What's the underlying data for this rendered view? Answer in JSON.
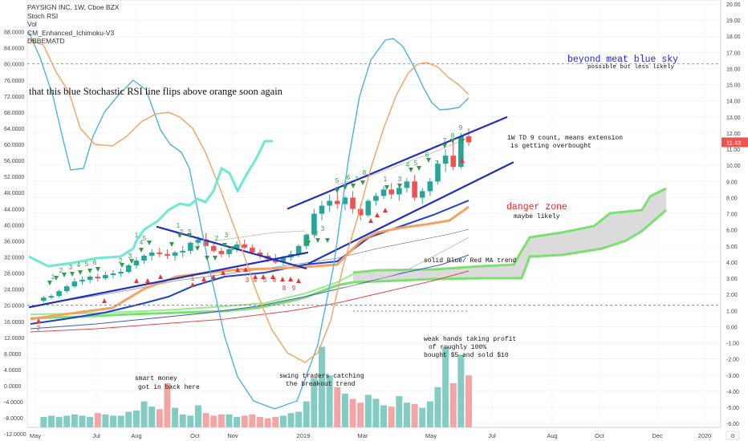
{
  "header": {
    "symbol_line": "PAYSIGN INC, 1W, Cboe BZX",
    "indicators": [
      "Stoch RSI",
      "Vol",
      "CM_Enhanced_Ichimoku-V3",
      "DBBEMATD"
    ]
  },
  "price_badge": {
    "value": "11.43",
    "color": "#ef5350"
  },
  "colors": {
    "stoch_k": "#4fb3d9",
    "stoch_d": "#f4a261",
    "trend": "#1f2fc0",
    "up": "#26a69a",
    "down": "#ef5350",
    "cloud_line": "#7be06f",
    "annotation_blue": "#1a1aff",
    "annotation_red": "#ff1a1a"
  },
  "annotations": {
    "stoch_note": "that this blue Stochastic RSI line flips above orange soon again",
    "beyond_title": "beyond meat blue sky",
    "beyond_sub": "possible but less likely",
    "td_line1": "1W  TD 9 count, means extension",
    "td_line2": "is getting overbought",
    "danger_title": "danger zone",
    "danger_sub": "maybe likely",
    "ma_trend": "solid Blue/ Red MA trend",
    "smart_1": "smart money",
    "smart_2": "got in back here",
    "swing_1": "swing traders catching",
    "swing_2": "the breakout trend",
    "weak_1": "weak hands taking profit",
    "weak_2": "of roughly  100%",
    "weak_3": "bought  $5  and sold  $10"
  },
  "chart_data": [
    {
      "type": "line",
      "title": "Stoch RSI",
      "ylim": [
        -12,
        92
      ],
      "y_ticks": [
        "88.0000",
        "84.0000",
        "80.0000",
        "76.0000",
        "72.0000",
        "68.0000",
        "64.0000",
        "60.0000",
        "56.0000",
        "52.0000",
        "48.0000",
        "44.0000",
        "40.0000",
        "36.0000",
        "32.0000",
        "28.0000",
        "24.0000",
        "20.0000",
        "16.0000",
        "12.0000",
        "8.0000",
        "4.0000",
        "0.0000",
        "-4.0000",
        "-8.0000",
        "-12.0000"
      ],
      "reference_levels": [
        80,
        20
      ],
      "series": [
        {
          "name": "K",
          "values": [
            85,
            77,
            62,
            48,
            47,
            59,
            66,
            71,
            68,
            56,
            52,
            34,
            18,
            -2,
            -3,
            -3,
            8,
            22,
            48,
            72,
            83,
            80,
            71,
            64,
            66
          ]
        },
        {
          "name": "D",
          "values": [
            79,
            66,
            55,
            55,
            60,
            63,
            63,
            58,
            52,
            44,
            36,
            24,
            12,
            4,
            2,
            6,
            22,
            38,
            55,
            67,
            75,
            75,
            71,
            68,
            67
          ]
        }
      ]
    },
    {
      "type": "bar",
      "title": "PAYSIGN INC, 1W, Cboe BZX",
      "ylim": [
        -6,
        20
      ],
      "y_ticks": [
        "20.00",
        "19.00",
        "18.00",
        "17.00",
        "16.00",
        "15.00",
        "14.00",
        "13.00",
        "12.00",
        "11.00",
        "10.00",
        "9.00",
        "8.00",
        "7.00",
        "6.00",
        "5.00",
        "4.00",
        "3.00",
        "2.00",
        "1.00",
        "0.00",
        "-1.00",
        "-2.00",
        "-3.00",
        "-4.00",
        "-5.00",
        "-6.00"
      ],
      "x_ticks": [
        "May",
        "Jul",
        "Aug",
        "Oct",
        "Nov",
        "2019",
        "Mar",
        "May",
        "Jul",
        "Aug",
        "Oct",
        "Dec",
        "2020"
      ],
      "last_close": 11.43,
      "candles": [
        [
          1.6,
          1.9,
          1.5,
          1.8
        ],
        [
          1.8,
          2.0,
          1.7,
          1.9
        ],
        [
          1.9,
          2.3,
          1.8,
          2.2
        ],
        [
          2.2,
          2.6,
          2.1,
          2.5
        ],
        [
          2.5,
          3.0,
          2.4,
          2.8
        ],
        [
          2.8,
          3.1,
          2.6,
          2.9
        ],
        [
          2.9,
          3.2,
          2.7,
          3.1
        ],
        [
          3.1,
          3.3,
          2.8,
          3.0
        ],
        [
          3.0,
          3.4,
          2.9,
          3.2
        ],
        [
          3.2,
          3.5,
          3.0,
          3.3
        ],
        [
          3.3,
          3.6,
          3.1,
          3.4
        ],
        [
          3.4,
          3.9,
          3.3,
          3.8
        ],
        [
          3.8,
          4.3,
          3.6,
          4.1
        ],
        [
          4.1,
          4.5,
          3.9,
          4.4
        ],
        [
          4.4,
          4.8,
          4.1,
          4.6
        ],
        [
          4.6,
          4.9,
          4.3,
          4.5
        ],
        [
          4.5,
          4.8,
          4.2,
          4.4
        ],
        [
          4.4,
          4.7,
          4.1,
          4.6
        ],
        [
          4.6,
          5.0,
          4.3,
          4.7
        ],
        [
          4.7,
          5.3,
          4.5,
          5.2
        ],
        [
          5.2,
          5.6,
          5.0,
          5.4
        ],
        [
          5.4,
          5.8,
          5.1,
          5.0
        ],
        [
          5.0,
          5.2,
          4.6,
          4.7
        ],
        [
          4.7,
          4.9,
          4.3,
          4.5
        ],
        [
          4.5,
          4.9,
          4.3,
          4.8
        ],
        [
          4.8,
          5.3,
          4.6,
          5.1
        ],
        [
          5.1,
          5.4,
          4.8,
          4.9
        ],
        [
          4.9,
          5.1,
          4.5,
          4.6
        ],
        [
          4.6,
          4.8,
          4.2,
          4.4
        ],
        [
          4.4,
          4.6,
          4.0,
          4.2
        ],
        [
          4.2,
          4.5,
          3.9,
          4.0
        ],
        [
          4.0,
          4.4,
          3.8,
          4.3
        ],
        [
          4.3,
          4.7,
          4.1,
          4.5
        ],
        [
          4.5,
          5.1,
          4.3,
          5.0
        ],
        [
          5.0,
          5.8,
          4.8,
          5.7
        ],
        [
          5.7,
          7.3,
          5.5,
          7.0
        ],
        [
          7.0,
          7.8,
          6.6,
          7.5
        ],
        [
          7.5,
          8.2,
          7.1,
          7.8
        ],
        [
          7.8,
          8.3,
          7.3,
          7.6
        ],
        [
          7.6,
          8.1,
          7.2,
          8.0
        ],
        [
          8.0,
          8.4,
          7.0,
          7.3
        ],
        [
          7.3,
          7.6,
          6.6,
          6.9
        ],
        [
          6.9,
          7.9,
          6.8,
          7.8
        ],
        [
          7.8,
          8.3,
          7.5,
          8.1
        ],
        [
          8.1,
          8.7,
          7.9,
          8.5
        ],
        [
          8.5,
          8.9,
          7.9,
          8.2
        ],
        [
          8.2,
          8.9,
          7.8,
          8.6
        ],
        [
          8.6,
          9.2,
          8.3,
          9.0
        ],
        [
          9.0,
          9.4,
          7.8,
          8.0
        ],
        [
          8.0,
          8.6,
          7.6,
          8.4
        ],
        [
          8.4,
          9.2,
          8.1,
          9.0
        ],
        [
          9.0,
          10.3,
          8.8,
          10.1
        ],
        [
          10.1,
          11.0,
          9.6,
          10.6
        ],
        [
          10.6,
          11.5,
          9.7,
          9.9
        ],
        [
          9.9,
          12.0,
          9.8,
          11.8
        ],
        [
          11.8,
          12.3,
          11.2,
          11.43
        ]
      ],
      "volume": [
        0.8,
        0.9,
        0.8,
        0.9,
        1.0,
        0.9,
        0.8,
        1.1,
        1.0,
        0.9,
        0.9,
        1.2,
        1.3,
        2.0,
        1.6,
        1.4,
        3.4,
        1.5,
        1.0,
        0.9,
        1.7,
        1.1,
        0.9,
        1.0,
        1.0,
        0.8,
        0.9,
        1.0,
        0.8,
        0.7,
        0.8,
        0.9,
        1.1,
        1.2,
        2.0,
        3.8,
        6.2,
        4.0,
        3.1,
        2.6,
        2.2,
        1.9,
        2.5,
        2.2,
        1.7,
        1.6,
        2.4,
        1.9,
        1.8,
        1.5,
        2.0,
        3.1,
        6.2,
        3.4,
        5.6,
        4.0
      ],
      "trend_channel_upper": [
        [
          6.8,
          7.3
        ],
        [
          19.6,
          13.0
        ]
      ],
      "trend_channel_lower": [
        [
          6.8,
          3.9
        ],
        [
          19.6,
          10.2
        ]
      ],
      "td_counts_up": [
        "1",
        "2",
        "3",
        "4",
        "5",
        "6",
        "7",
        "8",
        "9"
      ],
      "td_counts_down": [
        "1",
        "2",
        "3",
        "4",
        "5",
        "6",
        "7",
        "8",
        "9"
      ]
    }
  ]
}
